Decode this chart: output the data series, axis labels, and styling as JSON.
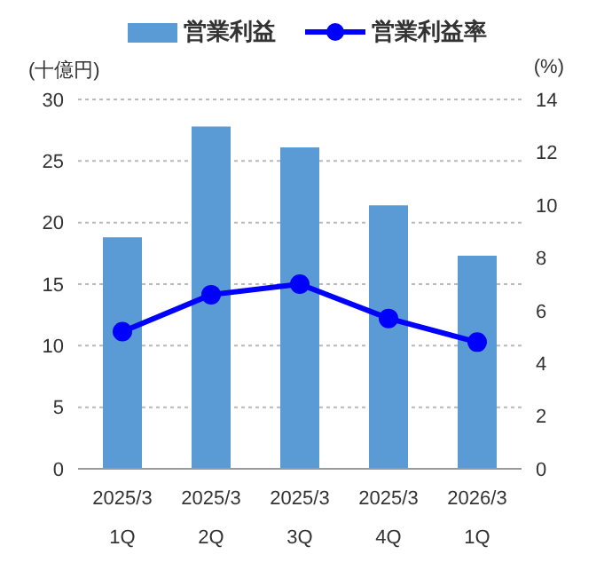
{
  "chart_data": {
    "type": "bar",
    "categories": [
      "2025/3\n1Q",
      "2025/3\n2Q",
      "2025/3\n3Q",
      "2025/3\n4Q",
      "2026/3\n1Q"
    ],
    "series": [
      {
        "name": "営業利益",
        "color": "#5b9bd5",
        "values": [
          18.8,
          27.8,
          26.1,
          21.4,
          17.3
        ]
      },
      {
        "name": "営業利益率",
        "type": "line",
        "axis": "y2",
        "color": "#0000ff",
        "values": [
          5.2,
          6.6,
          7.0,
          5.7,
          4.8
        ]
      }
    ],
    "ylabel": "(十億円)",
    "y2label": "(%)",
    "ylim": [
      0,
      30
    ],
    "yticks": [
      0,
      5,
      10,
      15,
      20,
      25,
      30
    ],
    "y2lim": [
      0,
      14
    ],
    "y2ticks": [
      0,
      2,
      4,
      6,
      8,
      10,
      12,
      14
    ],
    "grid": "y",
    "legend": "top",
    "marker": "circle"
  }
}
